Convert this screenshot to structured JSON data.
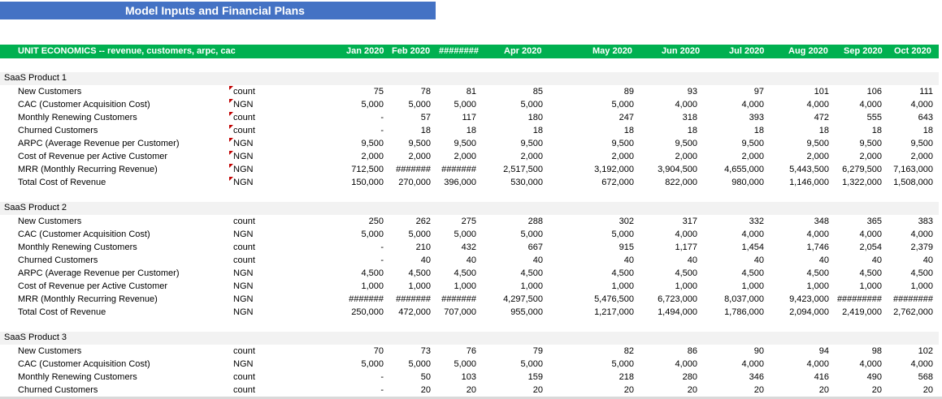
{
  "title": "Model Inputs and Financial Plans",
  "header": {
    "label": "UNIT ECONOMICS -- revenue, customers, arpc, cac",
    "months": [
      "Jan 2020",
      "Feb 2020",
      "########",
      "Apr 2020",
      "May 2020",
      "Jun 2020",
      "Jul 2020",
      "Aug 2020",
      "Sep 2020",
      "Oct 2020"
    ]
  },
  "sections": [
    {
      "name": "SaaS Product 1",
      "rows": [
        {
          "label": "New Customers",
          "unit": "count",
          "values": [
            "75",
            "78",
            "81",
            "85",
            "89",
            "93",
            "97",
            "101",
            "106",
            "111"
          ]
        },
        {
          "label": "CAC (Customer Acquisition Cost)",
          "unit": "NGN",
          "values": [
            "5,000",
            "5,000",
            "5,000",
            "5,000",
            "5,000",
            "4,000",
            "4,000",
            "4,000",
            "4,000",
            "4,000"
          ]
        },
        {
          "label": "Monthly Renewing Customers",
          "unit": "count",
          "values": [
            "-",
            "57",
            "117",
            "180",
            "247",
            "318",
            "393",
            "472",
            "555",
            "643"
          ]
        },
        {
          "label": "Churned Customers",
          "unit": "count",
          "values": [
            "-",
            "18",
            "18",
            "18",
            "18",
            "18",
            "18",
            "18",
            "18",
            "18"
          ]
        },
        {
          "label": "ARPC (Average Revenue per Customer)",
          "unit": "NGN",
          "values": [
            "9,500",
            "9,500",
            "9,500",
            "9,500",
            "9,500",
            "9,500",
            "9,500",
            "9,500",
            "9,500",
            "9,500"
          ]
        },
        {
          "label": "Cost of Revenue per Active Customer",
          "unit": "NGN",
          "values": [
            "2,000",
            "2,000",
            "2,000",
            "2,000",
            "2,000",
            "2,000",
            "2,000",
            "2,000",
            "2,000",
            "2,000"
          ]
        },
        {
          "label": "MRR (Monthly Recurring Revenue)",
          "unit": "NGN",
          "values": [
            "712,500",
            "#######",
            "#######",
            "2,517,500",
            "3,192,000",
            "3,904,500",
            "4,655,000",
            "5,443,500",
            "6,279,500",
            "7,163,000"
          ]
        },
        {
          "label": "Total Cost of Revenue",
          "unit": "NGN",
          "values": [
            "150,000",
            "270,000",
            "396,000",
            "530,000",
            "672,000",
            "822,000",
            "980,000",
            "1,146,000",
            "1,322,000",
            "1,508,000"
          ]
        }
      ]
    },
    {
      "name": "SaaS Product 2",
      "rows": [
        {
          "label": "New Customers",
          "unit": "count",
          "values": [
            "250",
            "262",
            "275",
            "288",
            "302",
            "317",
            "332",
            "348",
            "365",
            "383"
          ]
        },
        {
          "label": "CAC (Customer Acquisition Cost)",
          "unit": "NGN",
          "values": [
            "5,000",
            "5,000",
            "5,000",
            "5,000",
            "5,000",
            "4,000",
            "4,000",
            "4,000",
            "4,000",
            "4,000"
          ]
        },
        {
          "label": "Monthly Renewing Customers",
          "unit": "count",
          "values": [
            "-",
            "210",
            "432",
            "667",
            "915",
            "1,177",
            "1,454",
            "1,746",
            "2,054",
            "2,379"
          ]
        },
        {
          "label": "Churned Customers",
          "unit": "count",
          "values": [
            "-",
            "40",
            "40",
            "40",
            "40",
            "40",
            "40",
            "40",
            "40",
            "40"
          ]
        },
        {
          "label": "ARPC (Average Revenue per Customer)",
          "unit": "NGN",
          "values": [
            "4,500",
            "4,500",
            "4,500",
            "4,500",
            "4,500",
            "4,500",
            "4,500",
            "4,500",
            "4,500",
            "4,500"
          ]
        },
        {
          "label": "Cost of Revenue per Active Customer",
          "unit": "NGN",
          "values": [
            "1,000",
            "1,000",
            "1,000",
            "1,000",
            "1,000",
            "1,000",
            "1,000",
            "1,000",
            "1,000",
            "1,000"
          ]
        },
        {
          "label": "MRR (Monthly Recurring Revenue)",
          "unit": "NGN",
          "values": [
            "#######",
            "#######",
            "#######",
            "4,297,500",
            "5,476,500",
            "6,723,000",
            "8,037,000",
            "9,423,000",
            "#########",
            "########"
          ]
        },
        {
          "label": "Total Cost of Revenue",
          "unit": "NGN",
          "values": [
            "250,000",
            "472,000",
            "707,000",
            "955,000",
            "1,217,000",
            "1,494,000",
            "1,786,000",
            "2,094,000",
            "2,419,000",
            "2,762,000"
          ]
        }
      ]
    },
    {
      "name": "SaaS Product 3",
      "rows": [
        {
          "label": "New Customers",
          "unit": "count",
          "values": [
            "70",
            "73",
            "76",
            "79",
            "82",
            "86",
            "90",
            "94",
            "98",
            "102"
          ]
        },
        {
          "label": "CAC (Customer Acquisition Cost)",
          "unit": "NGN",
          "values": [
            "5,000",
            "5,000",
            "5,000",
            "5,000",
            "5,000",
            "4,000",
            "4,000",
            "4,000",
            "4,000",
            "4,000"
          ]
        },
        {
          "label": "Monthly Renewing Customers",
          "unit": "count",
          "values": [
            "-",
            "50",
            "103",
            "159",
            "218",
            "280",
            "346",
            "416",
            "490",
            "568"
          ]
        },
        {
          "label": "Churned Customers",
          "unit": "count",
          "values": [
            "-",
            "20",
            "20",
            "20",
            "20",
            "20",
            "20",
            "20",
            "20",
            "20"
          ]
        }
      ]
    }
  ],
  "colors": {
    "title_bg": "#4472c4",
    "header_bg": "#00b050",
    "band_bg": "#f2f2f2",
    "comment_marker": "#c00000"
  }
}
